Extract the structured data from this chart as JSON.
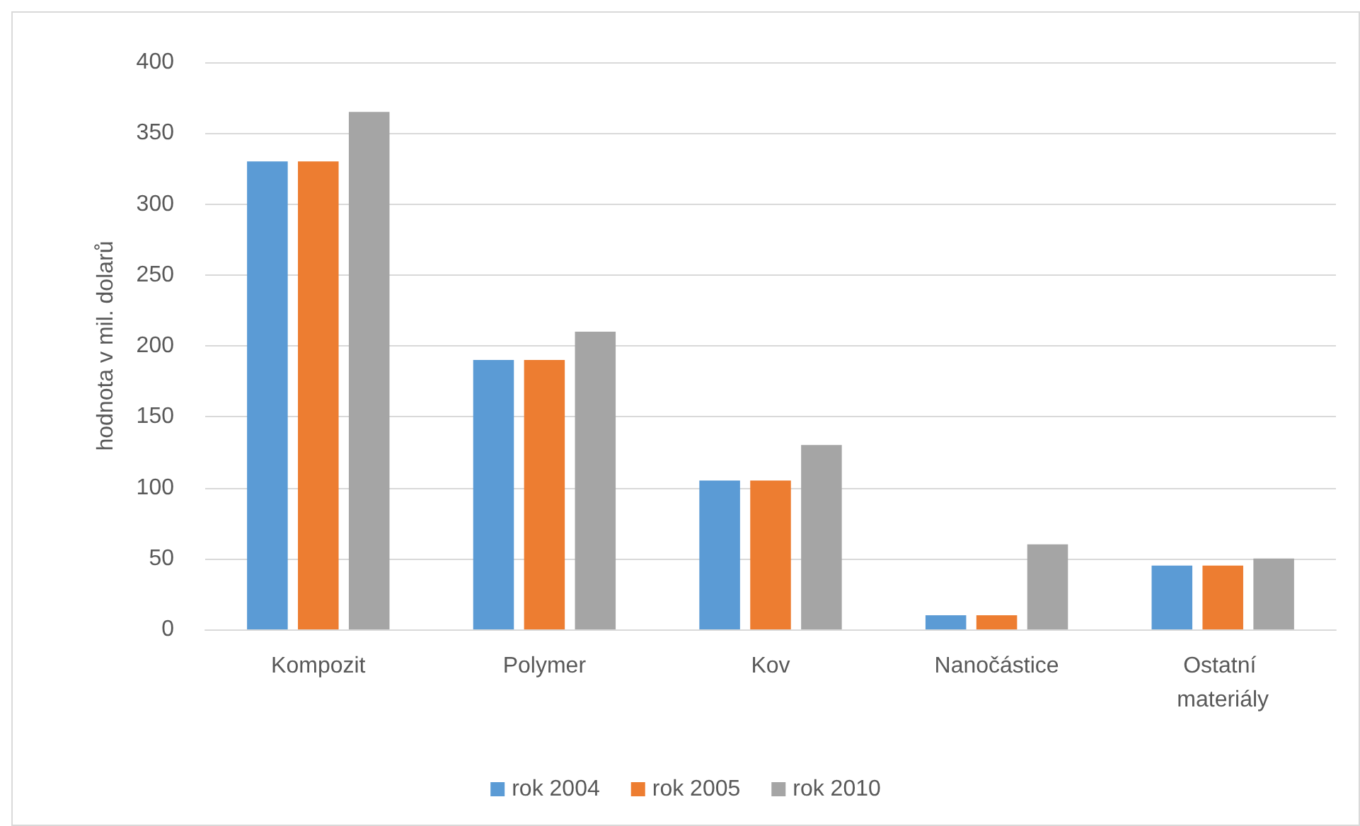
{
  "chart_data": {
    "type": "bar",
    "ylabel": "hodnota v mil. dolarů",
    "categories": [
      "Kompozit",
      "Polymer",
      "Kov",
      "Nanočástice",
      "Ostatní materiály"
    ],
    "series": [
      {
        "name": "rok 2004",
        "color": "#5b9bd5",
        "values": [
          330,
          190,
          105,
          10,
          45
        ]
      },
      {
        "name": "rok 2005",
        "color": "#ed7d31",
        "values": [
          330,
          190,
          105,
          10,
          45
        ]
      },
      {
        "name": "rok 2010",
        "color": "#a5a5a5",
        "values": [
          365,
          210,
          130,
          60,
          50
        ]
      }
    ],
    "ylim": [
      0,
      400
    ],
    "yticks": [
      0,
      50,
      100,
      150,
      200,
      250,
      300,
      350,
      400
    ],
    "grid": "y",
    "legend": "bottom"
  }
}
